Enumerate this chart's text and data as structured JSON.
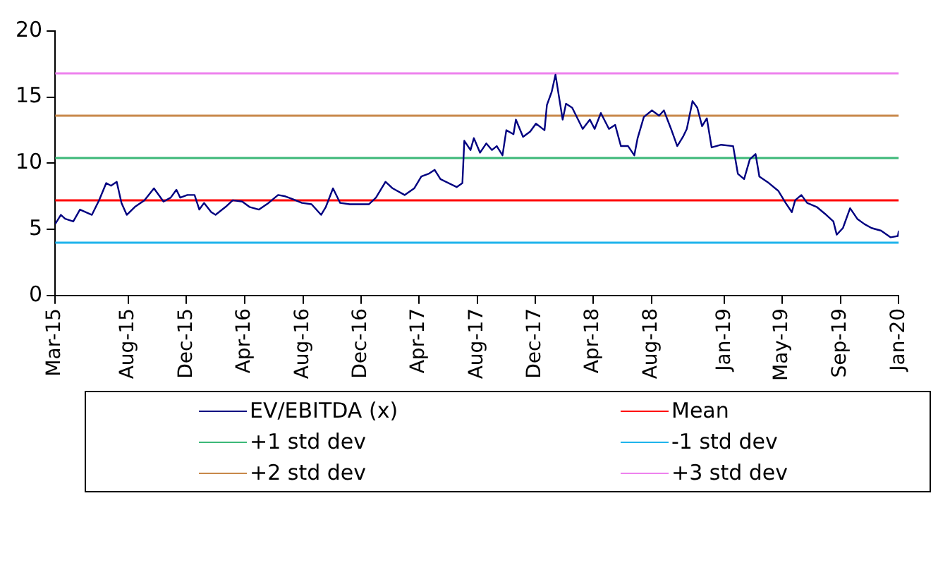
{
  "chart_data": {
    "type": "line",
    "x": [
      "2015-03-01",
      "2015-03-13",
      "2015-03-22",
      "2015-04-08",
      "2015-04-22",
      "2015-05-17",
      "2015-06-01",
      "2015-06-16",
      "2015-06-26",
      "2015-07-08",
      "2015-07-18",
      "2015-07-29",
      "2015-08-15",
      "2015-09-04",
      "2015-09-24",
      "2015-10-14",
      "2015-10-29",
      "2015-11-10",
      "2015-11-18",
      "2015-12-03",
      "2015-12-18",
      "2015-12-28",
      "2016-01-07",
      "2016-01-22",
      "2016-01-31",
      "2016-02-21",
      "2016-03-07",
      "2016-03-27",
      "2016-04-11",
      "2016-05-01",
      "2016-05-21",
      "2016-06-10",
      "2016-06-25",
      "2016-07-10",
      "2016-07-30",
      "2016-08-19",
      "2016-09-08",
      "2016-09-18",
      "2016-10-03",
      "2016-10-18",
      "2016-11-07",
      "2016-11-27",
      "2016-12-17",
      "2017-01-01",
      "2017-01-21",
      "2017-02-05",
      "2017-03-02",
      "2017-03-22",
      "2017-04-06",
      "2017-04-21",
      "2017-05-04",
      "2017-05-16",
      "2017-06-19",
      "2017-07-01",
      "2017-07-05",
      "2017-07-18",
      "2017-07-25",
      "2017-08-07",
      "2017-08-20",
      "2017-09-01",
      "2017-09-11",
      "2017-09-23",
      "2017-10-01",
      "2017-10-16",
      "2017-10-21",
      "2017-11-05",
      "2017-11-20",
      "2017-12-02",
      "2017-12-20",
      "2017-12-25",
      "2018-01-04",
      "2018-01-12",
      "2018-01-19",
      "2018-01-27",
      "2018-02-03",
      "2018-02-16",
      "2018-03-10",
      "2018-03-25",
      "2018-04-04",
      "2018-04-17",
      "2018-05-04",
      "2018-05-17",
      "2018-05-29",
      "2018-06-13",
      "2018-06-26",
      "2018-07-03",
      "2018-07-16",
      "2018-08-02",
      "2018-08-17",
      "2018-08-27",
      "2018-09-11",
      "2018-09-24",
      "2018-10-06",
      "2018-10-14",
      "2018-10-26",
      "2018-11-05",
      "2018-11-15",
      "2018-11-25",
      "2018-12-05",
      "2018-12-25",
      "2019-01-19",
      "2019-01-29",
      "2019-02-11",
      "2019-02-23",
      "2019-03-07",
      "2019-03-15",
      "2019-04-04",
      "2019-04-24",
      "2019-05-09",
      "2019-05-22",
      "2019-05-29",
      "2019-06-11",
      "2019-06-23",
      "2019-07-13",
      "2019-08-02",
      "2019-08-17",
      "2019-08-24",
      "2019-09-06",
      "2019-09-21",
      "2019-10-06",
      "2019-10-21",
      "2019-11-05",
      "2019-11-25",
      "2019-12-15",
      "2019-12-30",
      "2020-01-01"
    ],
    "series": [
      {
        "name": "EV/EBITDA (x)",
        "color": "#000080",
        "values": [
          5.4,
          6.1,
          5.8,
          5.6,
          6.5,
          6.1,
          7.2,
          8.5,
          8.3,
          8.6,
          7.0,
          6.1,
          6.7,
          7.2,
          8.1,
          7.1,
          7.4,
          8.0,
          7.4,
          7.6,
          7.6,
          6.5,
          7.0,
          6.3,
          6.1,
          6.7,
          7.2,
          7.1,
          6.7,
          6.5,
          7.0,
          7.6,
          7.5,
          7.3,
          7.0,
          6.9,
          6.1,
          6.7,
          8.1,
          7.0,
          6.9,
          6.9,
          6.9,
          7.4,
          8.6,
          8.1,
          7.6,
          8.1,
          9.0,
          9.2,
          9.5,
          8.8,
          8.2,
          8.5,
          11.7,
          11.0,
          11.9,
          10.8,
          11.5,
          11.0,
          11.3,
          10.6,
          12.5,
          12.2,
          13.3,
          12.0,
          12.4,
          13.0,
          12.5,
          14.4,
          15.4,
          16.7,
          15.1,
          13.3,
          14.5,
          14.2,
          12.6,
          13.3,
          12.6,
          13.8,
          12.6,
          12.9,
          11.3,
          11.3,
          10.6,
          11.9,
          13.5,
          14.0,
          13.6,
          14.0,
          12.6,
          11.3,
          12.0,
          12.6,
          14.7,
          14.2,
          12.8,
          13.4,
          11.2,
          11.4,
          11.3,
          9.2,
          8.8,
          10.3,
          10.7,
          9.0,
          8.5,
          7.9,
          7.0,
          6.3,
          7.2,
          7.6,
          7.0,
          6.7,
          6.1,
          5.6,
          4.6,
          5.1,
          6.6,
          5.8,
          5.4,
          5.1,
          4.9,
          4.4,
          4.5,
          4.9
        ]
      }
    ],
    "ref_lines": [
      {
        "axis": "y",
        "value": 7.2,
        "label": "Mean",
        "color": "#ff0000"
      },
      {
        "axis": "y",
        "value": 10.4,
        "label": "+1 std dev",
        "color": "#3cb878"
      },
      {
        "axis": "y",
        "value": 4.0,
        "label": "-1 std dev",
        "color": "#1fb4ec"
      },
      {
        "axis": "y",
        "value": 13.6,
        "label": "+2 std dev",
        "color": "#c8884a"
      },
      {
        "axis": "y",
        "value": 16.8,
        "label": "+3 std dev",
        "color": "#ee82ee"
      }
    ],
    "xlim": [
      "2015-03-01",
      "2020-01-01"
    ],
    "xticks": [
      {
        "value": "2015-03-01",
        "label": "Mar-15"
      },
      {
        "value": "2015-08-01",
        "label": "Aug-15"
      },
      {
        "value": "2015-12-01",
        "label": "Dec-15"
      },
      {
        "value": "2016-04-01",
        "label": "Apr-16"
      },
      {
        "value": "2016-08-01",
        "label": "Aug-16"
      },
      {
        "value": "2016-12-01",
        "label": "Dec-16"
      },
      {
        "value": "2017-04-01",
        "label": "Apr-17"
      },
      {
        "value": "2017-08-01",
        "label": "Aug-17"
      },
      {
        "value": "2017-12-01",
        "label": "Dec-17"
      },
      {
        "value": "2018-04-01",
        "label": "Apr-18"
      },
      {
        "value": "2018-08-01",
        "label": "Aug-18"
      },
      {
        "value": "2019-01-01",
        "label": "Jan-19"
      },
      {
        "value": "2019-05-01",
        "label": "May-19"
      },
      {
        "value": "2019-09-01",
        "label": "Sep-19"
      },
      {
        "value": "2020-01-01",
        "label": "Jan-20"
      }
    ],
    "ylim": [
      0,
      20
    ],
    "yticks": [
      0,
      5,
      10,
      15,
      20
    ],
    "grid": false,
    "legend": "bottom",
    "marker": "none",
    "line_style": "solid"
  }
}
